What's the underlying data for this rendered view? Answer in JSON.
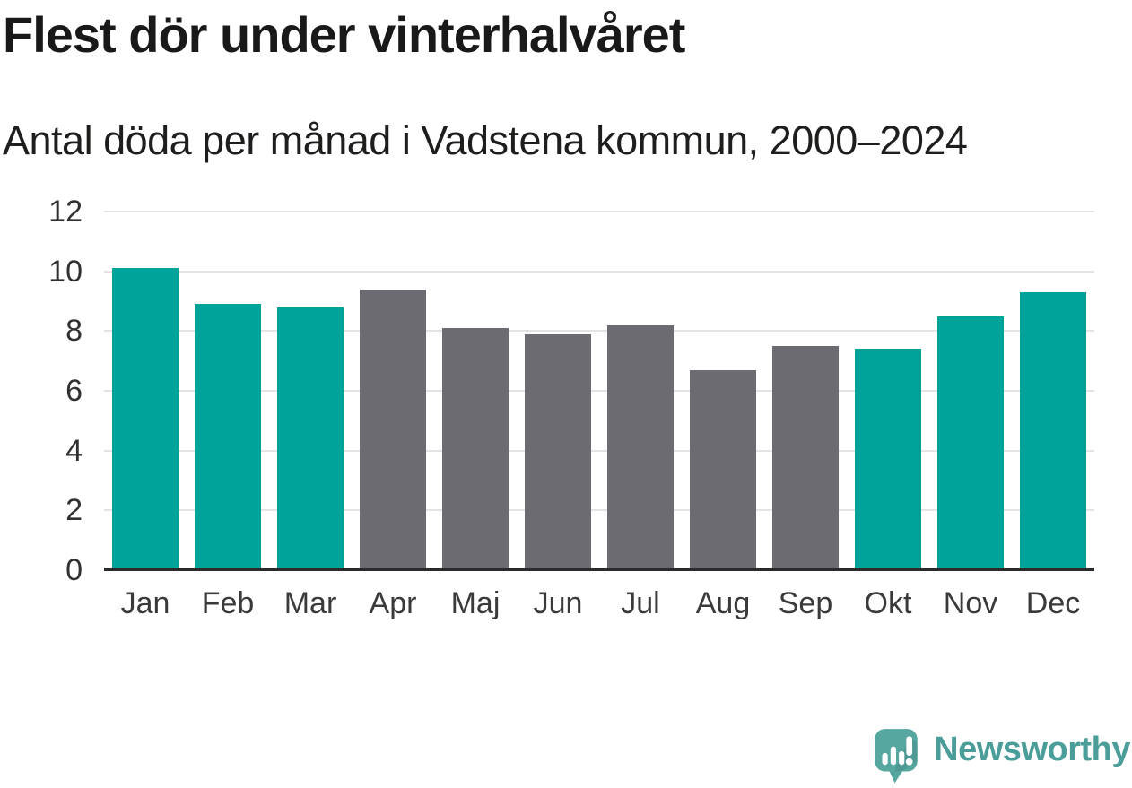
{
  "header": {
    "title": "Flest dör under vinterhalvåret",
    "subtitle": "Antal döda per månad i Vadstena kommun, 2000–2024"
  },
  "chart_data": {
    "type": "bar",
    "title": "Flest dör under vinterhalvåret",
    "subtitle": "Antal döda per månad i Vadstena kommun, 2000–2024",
    "categories": [
      "Jan",
      "Feb",
      "Mar",
      "Apr",
      "Maj",
      "Jun",
      "Jul",
      "Aug",
      "Sep",
      "Okt",
      "Nov",
      "Dec"
    ],
    "values": [
      10.1,
      8.9,
      8.8,
      9.4,
      8.1,
      7.9,
      8.2,
      6.7,
      7.5,
      7.4,
      8.5,
      9.3
    ],
    "bar_seasons": [
      "winter",
      "winter",
      "winter",
      "summer",
      "summer",
      "summer",
      "summer",
      "summer",
      "summer",
      "winter",
      "winter",
      "winter"
    ],
    "xlabel": "",
    "ylabel": "",
    "ylim": [
      0,
      12
    ],
    "y_ticks": [
      0,
      2,
      4,
      6,
      8,
      10,
      12
    ],
    "grid": "horizontal-only",
    "legend": "none",
    "colors": {
      "winter": "#00a399",
      "summer": "#6b6b71",
      "gridline": "#e3e3e3",
      "axis_line": "#2b2b2b"
    }
  },
  "footer": {
    "brand_name": "Newsworthy",
    "logo_icon": "newsworthy-speech-bubble-bar-chart-icon",
    "brand_text_color": "#4a9d99",
    "brand_icon_color": "#55a7a0"
  }
}
